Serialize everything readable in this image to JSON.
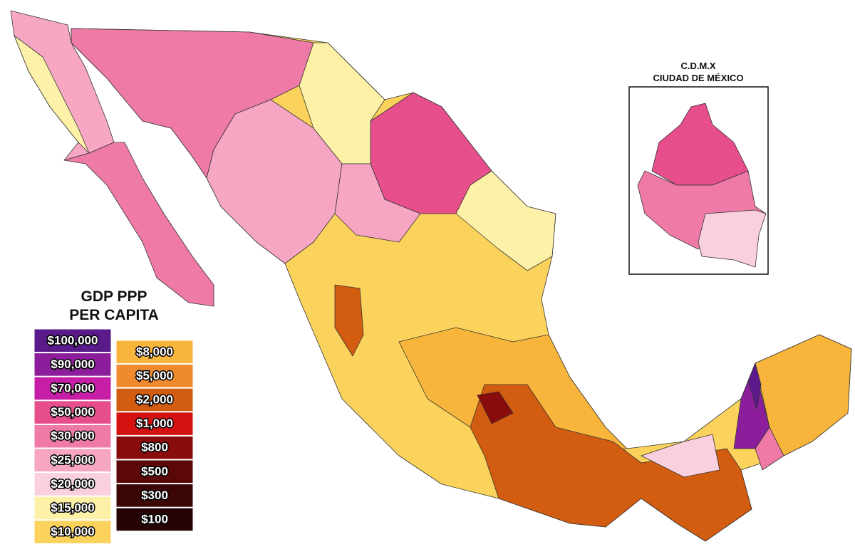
{
  "legend": {
    "title": [
      "GDP PPP",
      "PER CAPITA"
    ],
    "columns": [
      [
        {
          "label": "$100,000",
          "color": "#5a1a8a"
        },
        {
          "label": "$90,000",
          "color": "#8c1e9c"
        },
        {
          "label": "$70,000",
          "color": "#c61ea6"
        },
        {
          "label": "$50,000",
          "color": "#e64e8c"
        },
        {
          "label": "$30,000",
          "color": "#ef7aa7"
        },
        {
          "label": "$25,000",
          "color": "#f6a6c3"
        },
        {
          "label": "$20,000",
          "color": "#fbd0de"
        },
        {
          "label": "$15,000",
          "color": "#fdf1a8"
        },
        {
          "label": "$10,000",
          "color": "#fbd35c"
        }
      ],
      [
        {
          "label": "$8,000",
          "color": "#f8b53b"
        },
        {
          "label": "$5,000",
          "color": "#ef8a2f"
        },
        {
          "label": "$2,000",
          "color": "#d25c10"
        },
        {
          "label": "$1,000",
          "color": "#d41212"
        },
        {
          "label": "$800",
          "color": "#880c0c"
        },
        {
          "label": "$500",
          "color": "#5c0808"
        },
        {
          "label": "$300",
          "color": "#3c0606"
        },
        {
          "label": "$100",
          "color": "#260406"
        }
      ]
    ]
  },
  "inset": {
    "title": [
      "C.D.M.X",
      "CIUDAD DE MÉXICO"
    ]
  }
}
